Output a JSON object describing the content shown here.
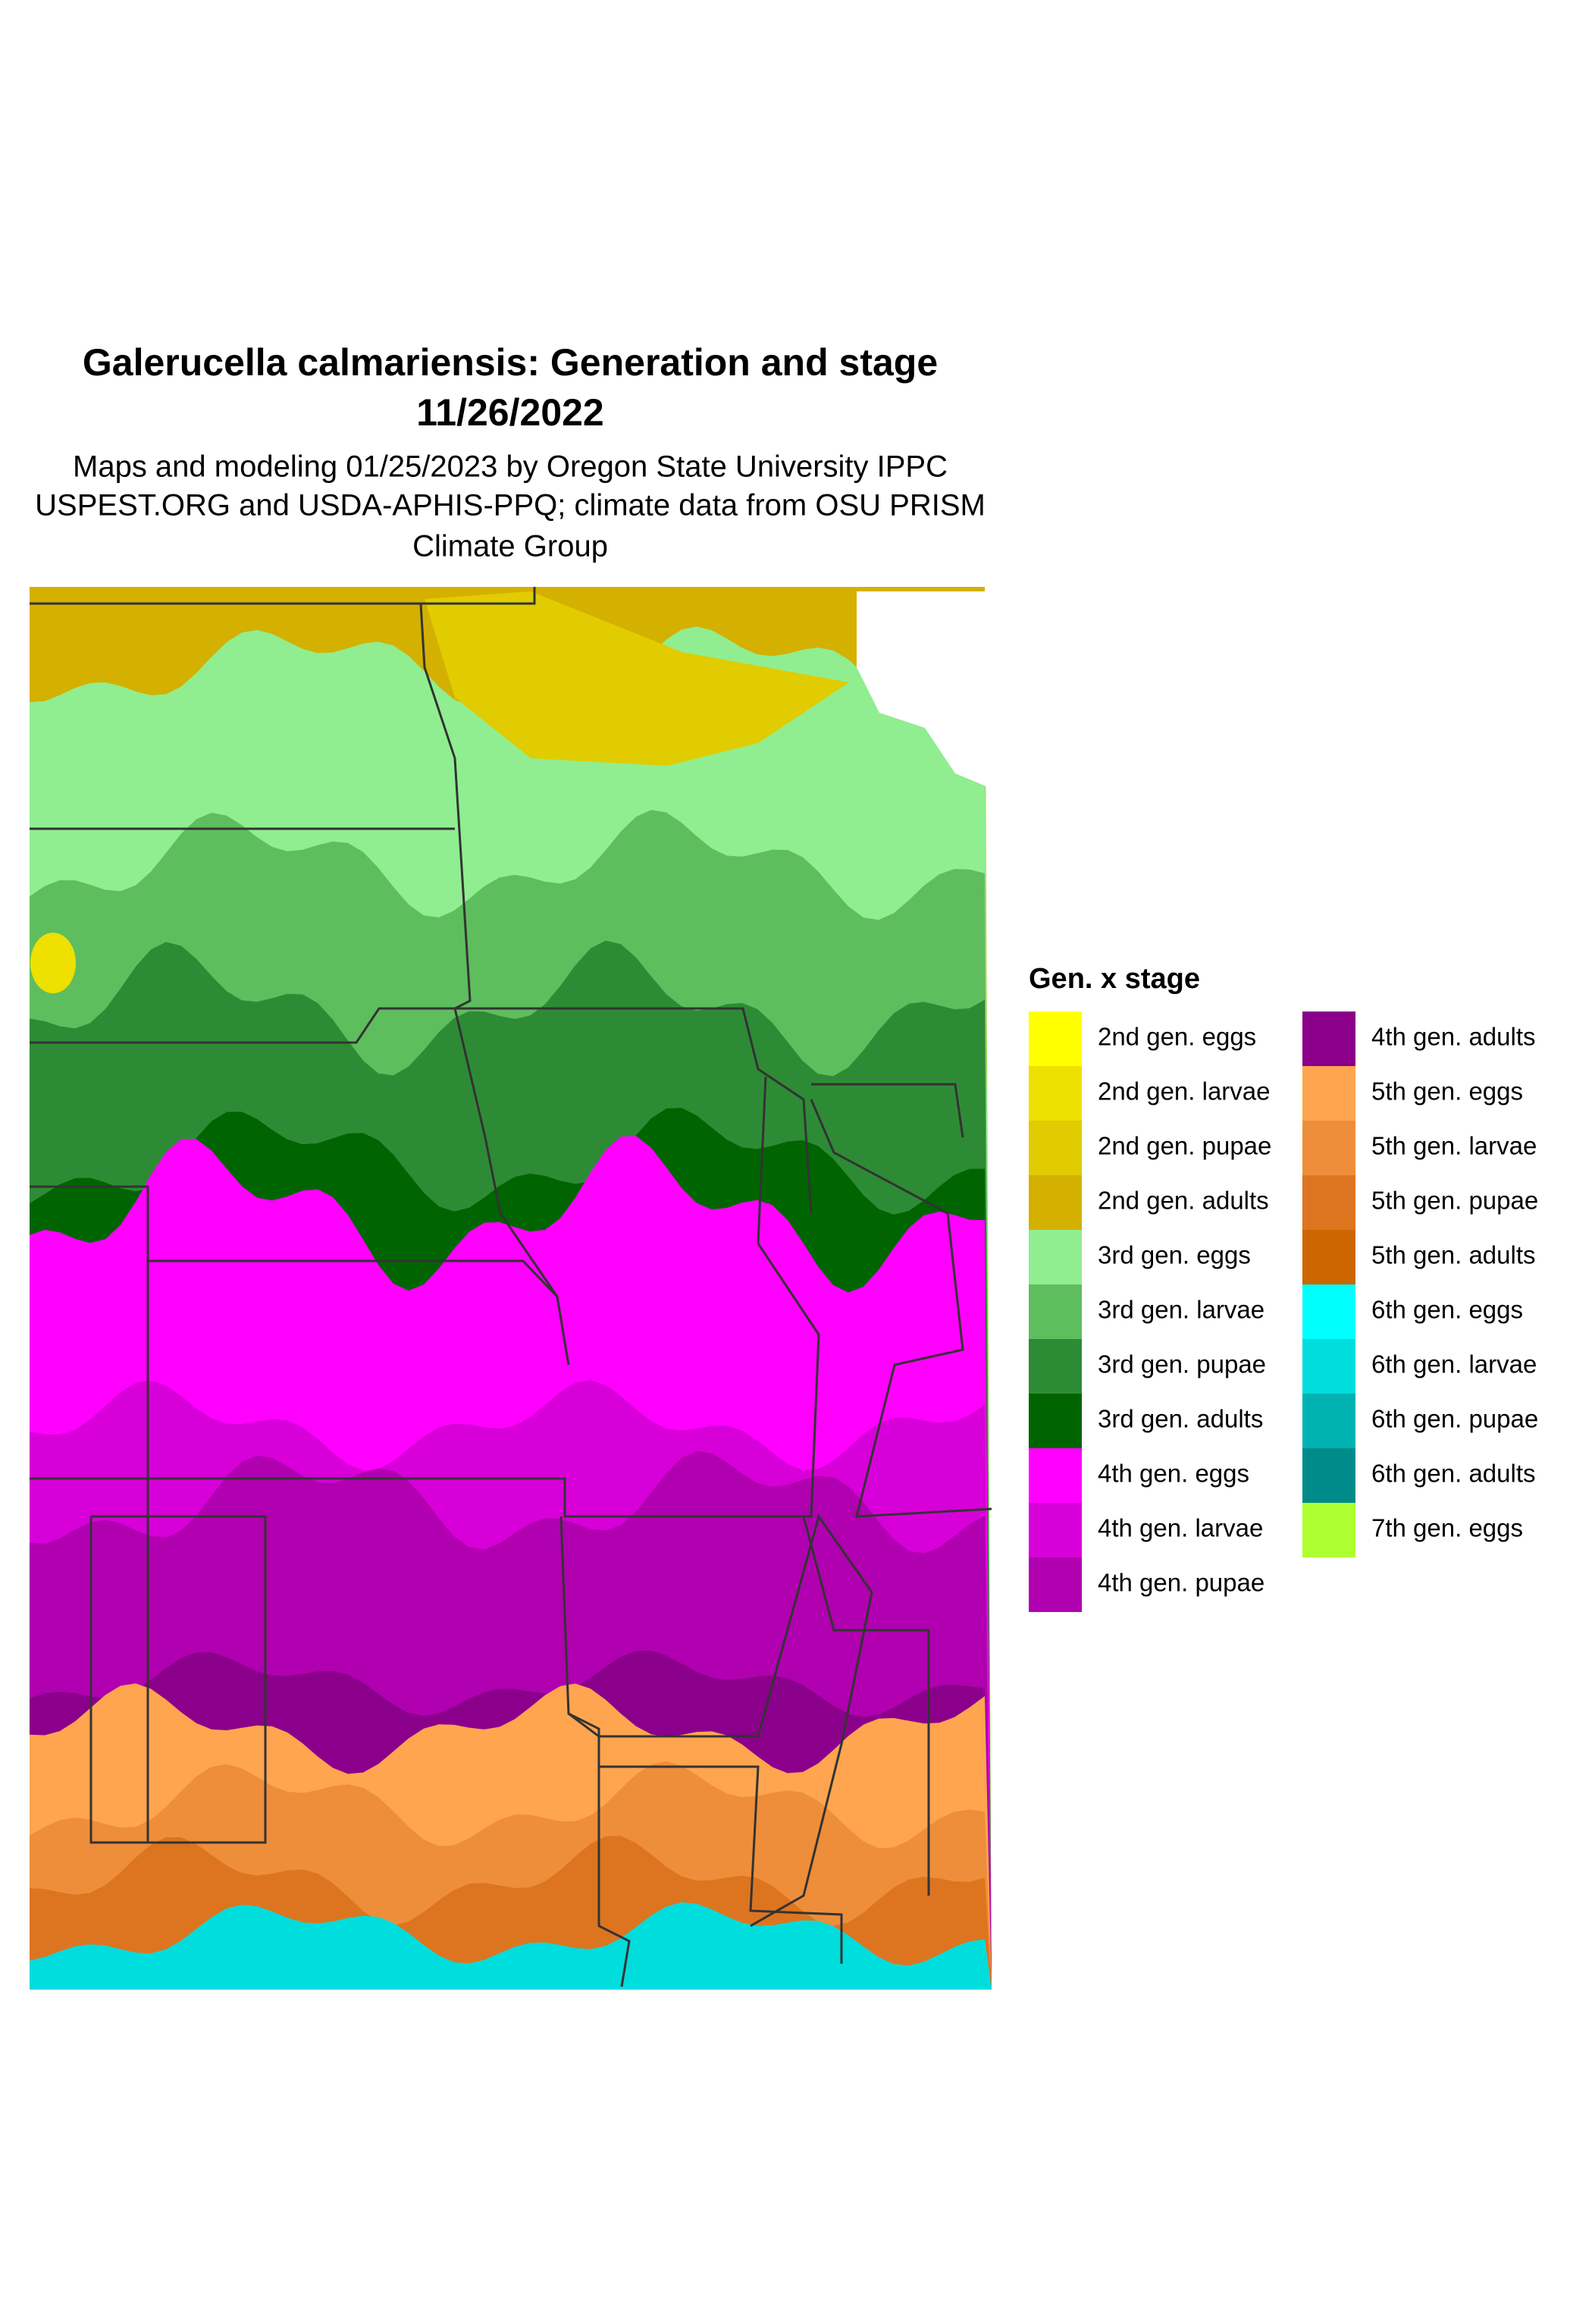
{
  "map": {
    "title": "Galerucella calmariensis: Generation and stage",
    "date": "11/26/2022",
    "subtitle_lines": [
      "Maps and modeling 01/25/2023 by Oregon State University IPPC",
      "USPEST.ORG and USDA-APHIS-PPQ; climate data from OSU PRISM",
      "Climate Group"
    ],
    "legend": {
      "title": "Gen. x stage",
      "items": [
        {
          "label": "2nd gen. eggs",
          "color": "#FFFF00"
        },
        {
          "label": "2nd gen. larvae",
          "color": "#EEE000"
        },
        {
          "label": "2nd gen. pupae",
          "color": "#E0CC00"
        },
        {
          "label": "2nd gen. adults",
          "color": "#D4B000"
        },
        {
          "label": "3rd gen. eggs",
          "color": "#90EE90"
        },
        {
          "label": "3rd gen. larvae",
          "color": "#5EBE5E"
        },
        {
          "label": "3rd gen. pupae",
          "color": "#2E8B35"
        },
        {
          "label": "3rd gen. adults",
          "color": "#006400"
        },
        {
          "label": "4th gen. eggs",
          "color": "#FF00FF"
        },
        {
          "label": "4th gen. larvae",
          "color": "#D800D8"
        },
        {
          "label": "4th gen. pupae",
          "color": "#B000B0"
        },
        {
          "label": "4th gen. adults",
          "color": "#8B008B"
        },
        {
          "label": "5th gen. eggs",
          "color": "#FFA54F"
        },
        {
          "label": "5th gen. larvae",
          "color": "#EE8E3A"
        },
        {
          "label": "5th gen. pupae",
          "color": "#DD7520"
        },
        {
          "label": "5th gen. adults",
          "color": "#CD6600"
        },
        {
          "label": "6th gen. eggs",
          "color": "#00FFFF"
        },
        {
          "label": "6th gen. larvae",
          "color": "#00DDDD"
        },
        {
          "label": "6th gen. pupae",
          "color": "#00B2B2"
        },
        {
          "label": "6th gen. adults",
          "color": "#008B8B"
        },
        {
          "label": "7th gen. eggs",
          "color": "#ADFF2F"
        }
      ]
    }
  }
}
